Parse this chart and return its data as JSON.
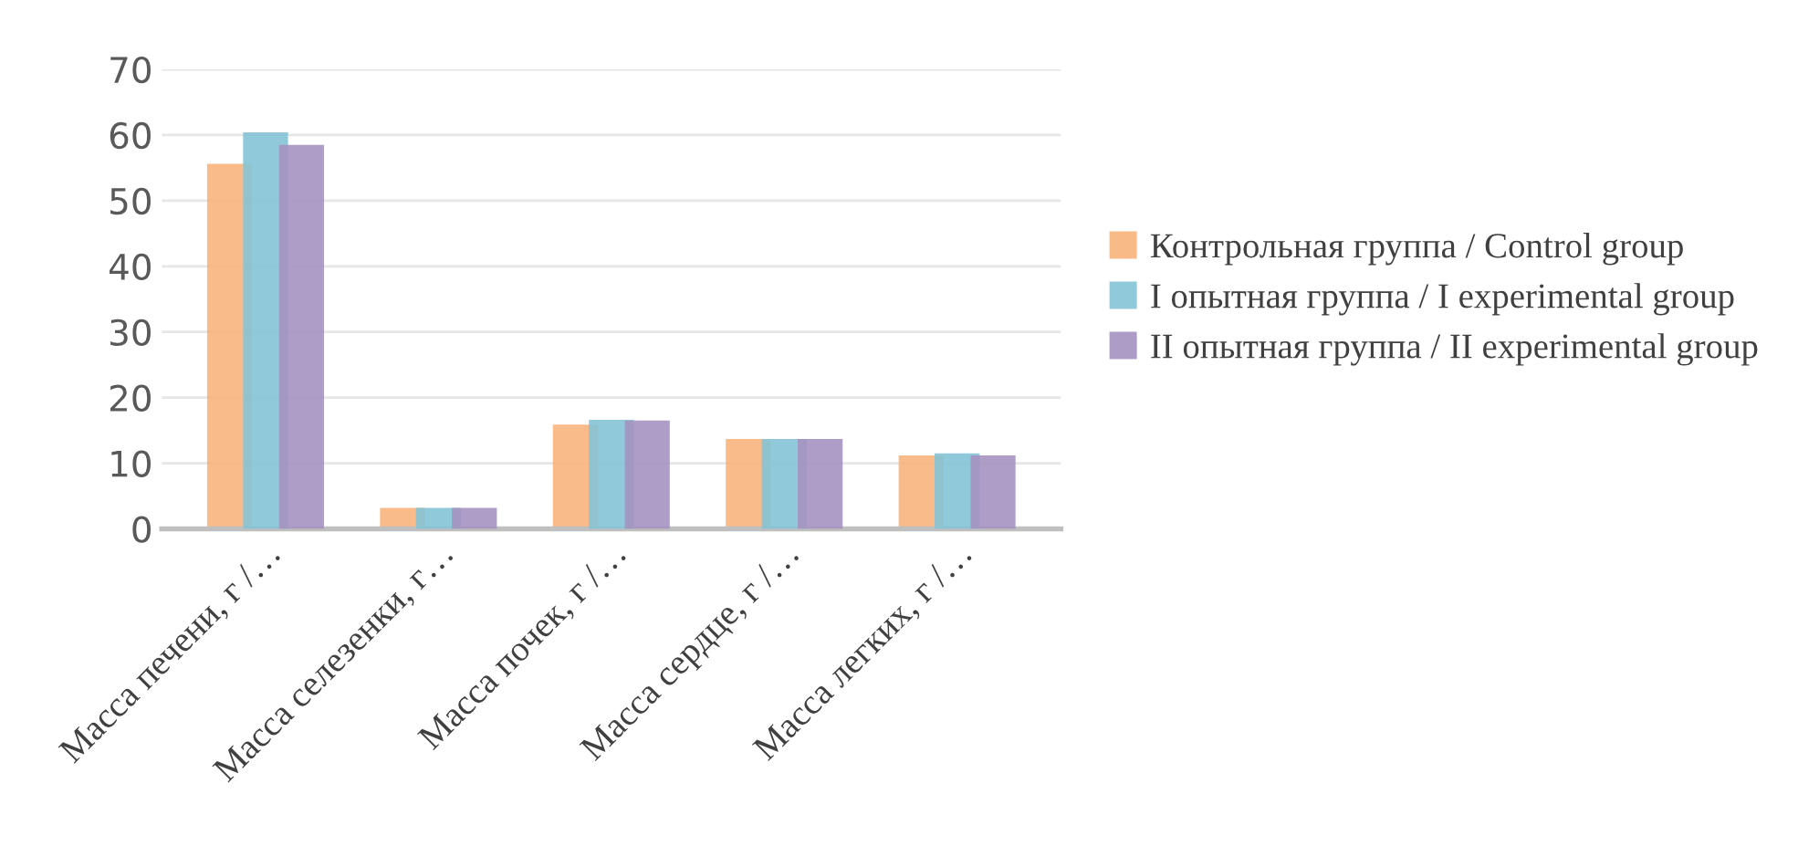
{
  "chart_data": {
    "type": "bar",
    "categories": [
      "Масса печени, г /…",
      "Масса селезенки, г…",
      "Масса почек, г /…",
      "Масса сердце, г /…",
      "Масса легких, г /…"
    ],
    "series": [
      {
        "name": "Контрольная группа / Control group",
        "color": "#f8b47c",
        "values": [
          55.6,
          3.2,
          15.9,
          13.7,
          11.2
        ]
      },
      {
        "name": "I опытная группа / I experimental group",
        "color": "#84c4d6",
        "values": [
          60.4,
          3.2,
          16.6,
          13.7,
          11.5
        ]
      },
      {
        "name": "II опытная группа / II experimental group",
        "color": "#a592c0",
        "values": [
          58.5,
          3.2,
          16.5,
          13.7,
          11.2
        ]
      }
    ],
    "ylim": [
      0,
      70
    ],
    "yticks": [
      0,
      10,
      20,
      30,
      40,
      50,
      60,
      70
    ],
    "grid": "y",
    "legend": "right"
  }
}
